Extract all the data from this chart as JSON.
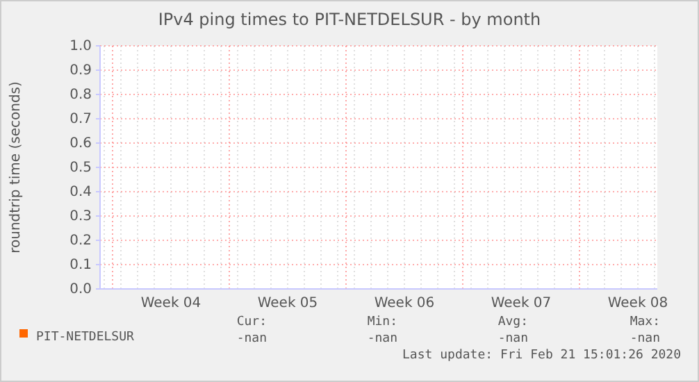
{
  "chart_data": {
    "type": "line",
    "title": "IPv4 ping times to PIT-NETDELSUR - by month",
    "ylabel": "roundtrip time (seconds)",
    "categories": [
      "Week 04",
      "Week 05",
      "Week 06",
      "Week 07",
      "Week 08"
    ],
    "series": [
      {
        "name": "PIT-NETDELSUR",
        "color": "#ff6600",
        "values": [
          null,
          null,
          null,
          null,
          null
        ]
      }
    ],
    "ylim": [
      0,
      1
    ],
    "yticks": [
      {
        "value": 0,
        "label": "0.0"
      },
      {
        "value": 0.1,
        "label": "0.1"
      },
      {
        "value": 0.2,
        "label": "0.2"
      },
      {
        "value": 0.3,
        "label": "0.3"
      },
      {
        "value": 0.4,
        "label": "0.4"
      },
      {
        "value": 0.5,
        "label": "0.5"
      },
      {
        "value": 0.6,
        "label": "0.6"
      },
      {
        "value": 0.7,
        "label": "0.7"
      },
      {
        "value": 0.8,
        "label": "0.8"
      },
      {
        "value": 0.9,
        "label": "0.9"
      },
      {
        "value": 1,
        "label": "1.0"
      }
    ],
    "grid": true,
    "legend": "bottom",
    "annotations": [
      "Cur:",
      "Min:",
      "Avg:",
      "Max:",
      "-nan",
      "-nan",
      "-nan",
      "-nan",
      "Last update: Fri Feb 21 15:01:26 2020"
    ]
  }
}
